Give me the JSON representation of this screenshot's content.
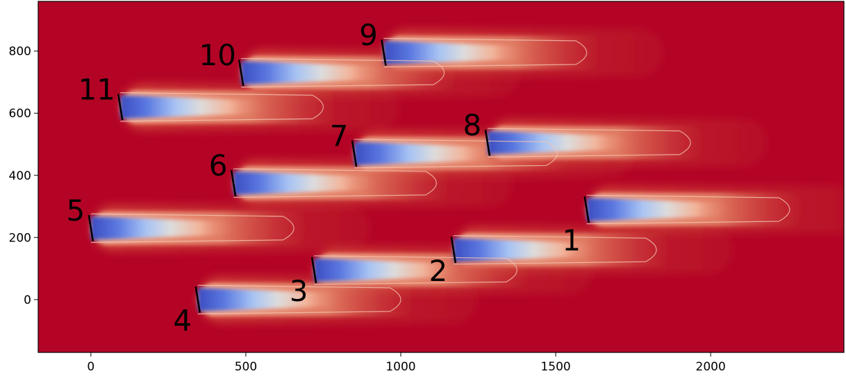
{
  "chart_data": {
    "type": "heatmap",
    "title": "",
    "xlabel": "",
    "ylabel": "",
    "xlim": [
      -170,
      2430
    ],
    "ylim": [
      -170,
      960
    ],
    "x_ticks": [
      0,
      500,
      1000,
      1500,
      2000
    ],
    "y_ticks": [
      0,
      200,
      400,
      600,
      800
    ],
    "x_tick_labels": [
      "0",
      "500",
      "1000",
      "1500",
      "2000"
    ],
    "y_tick_labels": [
      "0",
      "200",
      "400",
      "600",
      "800"
    ],
    "grid": false,
    "legend": "none",
    "colors": {
      "freestream": "#b40426",
      "wake_core": "#3b4cc0",
      "wake_mid": "#dddcdc",
      "wake_edge": "#f08a6c",
      "contour": "#f4c4b4",
      "rotor": "#000000"
    },
    "turbines": [
      {
        "label": "1",
        "x": 1600,
        "y": 290
      },
      {
        "label": "2",
        "x": 1170,
        "y": 160
      },
      {
        "label": "3",
        "x": 720,
        "y": 95
      },
      {
        "label": "4",
        "x": 345,
        "y": 0
      },
      {
        "label": "5",
        "x": 0,
        "y": 230
      },
      {
        "label": "6",
        "x": 460,
        "y": 375
      },
      {
        "label": "7",
        "x": 850,
        "y": 470
      },
      {
        "label": "8",
        "x": 1280,
        "y": 505
      },
      {
        "label": "9",
        "x": 945,
        "y": 795
      },
      {
        "label": "10",
        "x": 485,
        "y": 730
      },
      {
        "label": "11",
        "x": 95,
        "y": 620
      }
    ]
  }
}
